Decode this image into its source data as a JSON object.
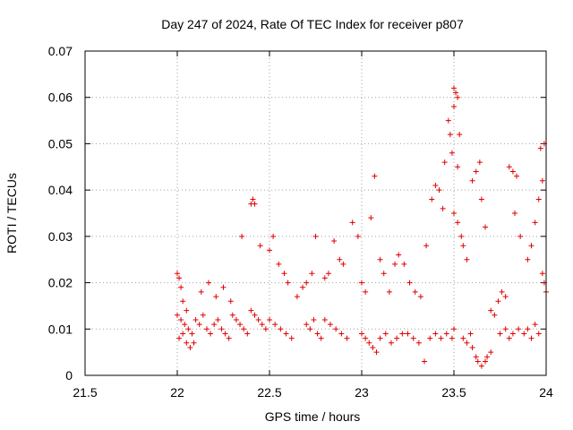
{
  "chart_data": {
    "type": "scatter",
    "title": "Day 247 of 2024, Rate Of TEC Index for receiver p807",
    "xlabel": "GPS time / hours",
    "ylabel": "ROTI / TECUs",
    "xlim": [
      21.5,
      24
    ],
    "ylim": [
      0,
      0.07
    ],
    "x_ticks": [
      21.5,
      22,
      22.5,
      23,
      23.5,
      24
    ],
    "x_tick_labels": [
      "21.5",
      "22",
      "22.5",
      "23",
      "23.5",
      "24"
    ],
    "y_ticks": [
      0,
      0.01,
      0.02,
      0.03,
      0.04,
      0.05,
      0.06,
      0.07
    ],
    "y_tick_labels": [
      "0",
      "0.01",
      "0.02",
      "0.03",
      "0.04",
      "0.05",
      "0.06",
      "0.07"
    ],
    "grid": true,
    "marker": "+",
    "color": "#e00000",
    "series": [
      {
        "name": "ROTI",
        "points": [
          [
            22.0,
            0.022
          ],
          [
            22.01,
            0.021
          ],
          [
            22.02,
            0.019
          ],
          [
            22.03,
            0.016
          ],
          [
            22.05,
            0.014
          ],
          [
            22.0,
            0.013
          ],
          [
            22.02,
            0.012
          ],
          [
            22.04,
            0.011
          ],
          [
            22.06,
            0.01
          ],
          [
            22.08,
            0.009
          ],
          [
            22.01,
            0.008
          ],
          [
            22.03,
            0.009
          ],
          [
            22.05,
            0.007
          ],
          [
            22.07,
            0.006
          ],
          [
            22.09,
            0.007
          ],
          [
            22.1,
            0.012
          ],
          [
            22.12,
            0.011
          ],
          [
            22.14,
            0.013
          ],
          [
            22.16,
            0.01
          ],
          [
            22.18,
            0.009
          ],
          [
            22.2,
            0.011
          ],
          [
            22.22,
            0.012
          ],
          [
            22.24,
            0.01
          ],
          [
            22.26,
            0.009
          ],
          [
            22.28,
            0.008
          ],
          [
            22.13,
            0.018
          ],
          [
            22.17,
            0.02
          ],
          [
            22.21,
            0.017
          ],
          [
            22.25,
            0.019
          ],
          [
            22.29,
            0.016
          ],
          [
            22.3,
            0.013
          ],
          [
            22.32,
            0.012
          ],
          [
            22.34,
            0.011
          ],
          [
            22.36,
            0.01
          ],
          [
            22.38,
            0.009
          ],
          [
            22.4,
            0.037
          ],
          [
            22.41,
            0.038
          ],
          [
            22.42,
            0.037
          ],
          [
            22.35,
            0.03
          ],
          [
            22.45,
            0.028
          ],
          [
            22.4,
            0.014
          ],
          [
            22.42,
            0.013
          ],
          [
            22.44,
            0.012
          ],
          [
            22.46,
            0.011
          ],
          [
            22.48,
            0.01
          ],
          [
            22.5,
            0.027
          ],
          [
            22.52,
            0.03
          ],
          [
            22.55,
            0.024
          ],
          [
            22.58,
            0.022
          ],
          [
            22.6,
            0.02
          ],
          [
            22.5,
            0.012
          ],
          [
            22.53,
            0.011
          ],
          [
            22.56,
            0.01
          ],
          [
            22.59,
            0.009
          ],
          [
            22.62,
            0.008
          ],
          [
            22.65,
            0.017
          ],
          [
            22.68,
            0.019
          ],
          [
            22.7,
            0.02
          ],
          [
            22.73,
            0.022
          ],
          [
            22.75,
            0.03
          ],
          [
            22.7,
            0.011
          ],
          [
            22.72,
            0.01
          ],
          [
            22.74,
            0.012
          ],
          [
            22.76,
            0.009
          ],
          [
            22.78,
            0.008
          ],
          [
            22.8,
            0.021
          ],
          [
            22.82,
            0.022
          ],
          [
            22.85,
            0.029
          ],
          [
            22.88,
            0.025
          ],
          [
            22.9,
            0.024
          ],
          [
            22.8,
            0.012
          ],
          [
            22.83,
            0.011
          ],
          [
            22.86,
            0.01
          ],
          [
            22.89,
            0.009
          ],
          [
            22.92,
            0.008
          ],
          [
            22.95,
            0.033
          ],
          [
            22.98,
            0.03
          ],
          [
            23.0,
            0.02
          ],
          [
            23.02,
            0.018
          ],
          [
            23.05,
            0.034
          ],
          [
            23.0,
            0.009
          ],
          [
            23.02,
            0.008
          ],
          [
            23.04,
            0.007
          ],
          [
            23.06,
            0.006
          ],
          [
            23.08,
            0.005
          ],
          [
            23.07,
            0.043
          ],
          [
            23.1,
            0.025
          ],
          [
            23.12,
            0.022
          ],
          [
            23.15,
            0.018
          ],
          [
            23.18,
            0.024
          ],
          [
            23.1,
            0.008
          ],
          [
            23.13,
            0.009
          ],
          [
            23.16,
            0.007
          ],
          [
            23.19,
            0.008
          ],
          [
            23.22,
            0.009
          ],
          [
            23.2,
            0.026
          ],
          [
            23.23,
            0.024
          ],
          [
            23.26,
            0.02
          ],
          [
            23.29,
            0.018
          ],
          [
            23.32,
            0.017
          ],
          [
            23.25,
            0.009
          ],
          [
            23.28,
            0.008
          ],
          [
            23.31,
            0.007
          ],
          [
            23.34,
            0.003
          ],
          [
            23.37,
            0.008
          ],
          [
            23.35,
            0.028
          ],
          [
            23.38,
            0.038
          ],
          [
            23.4,
            0.041
          ],
          [
            23.42,
            0.04
          ],
          [
            23.44,
            0.036
          ],
          [
            23.4,
            0.009
          ],
          [
            23.43,
            0.008
          ],
          [
            23.46,
            0.009
          ],
          [
            23.49,
            0.008
          ],
          [
            23.5,
            0.01
          ],
          [
            23.45,
            0.046
          ],
          [
            23.47,
            0.055
          ],
          [
            23.48,
            0.052
          ],
          [
            23.5,
            0.058
          ],
          [
            23.5,
            0.062
          ],
          [
            23.51,
            0.061
          ],
          [
            23.52,
            0.06
          ],
          [
            23.53,
            0.052
          ],
          [
            23.49,
            0.048
          ],
          [
            23.52,
            0.045
          ],
          [
            23.5,
            0.035
          ],
          [
            23.52,
            0.033
          ],
          [
            23.54,
            0.03
          ],
          [
            23.55,
            0.028
          ],
          [
            23.57,
            0.025
          ],
          [
            23.55,
            0.008
          ],
          [
            23.57,
            0.007
          ],
          [
            23.59,
            0.009
          ],
          [
            23.6,
            0.006
          ],
          [
            23.62,
            0.004
          ],
          [
            23.6,
            0.042
          ],
          [
            23.62,
            0.044
          ],
          [
            23.64,
            0.046
          ],
          [
            23.65,
            0.038
          ],
          [
            23.67,
            0.032
          ],
          [
            23.63,
            0.003
          ],
          [
            23.65,
            0.002
          ],
          [
            23.67,
            0.003
          ],
          [
            23.68,
            0.004
          ],
          [
            23.7,
            0.005
          ],
          [
            23.7,
            0.014
          ],
          [
            23.72,
            0.013
          ],
          [
            23.74,
            0.016
          ],
          [
            23.76,
            0.018
          ],
          [
            23.78,
            0.017
          ],
          [
            23.75,
            0.009
          ],
          [
            23.78,
            0.01
          ],
          [
            23.8,
            0.008
          ],
          [
            23.82,
            0.009
          ],
          [
            23.85,
            0.01
          ],
          [
            23.8,
            0.045
          ],
          [
            23.82,
            0.044
          ],
          [
            23.84,
            0.043
          ],
          [
            23.83,
            0.035
          ],
          [
            23.86,
            0.03
          ],
          [
            23.88,
            0.009
          ],
          [
            23.9,
            0.01
          ],
          [
            23.92,
            0.008
          ],
          [
            23.94,
            0.011
          ],
          [
            23.96,
            0.009
          ],
          [
            23.9,
            0.025
          ],
          [
            23.92,
            0.028
          ],
          [
            23.94,
            0.033
          ],
          [
            23.96,
            0.038
          ],
          [
            23.98,
            0.042
          ],
          [
            23.97,
            0.049
          ],
          [
            23.99,
            0.05
          ],
          [
            23.98,
            0.022
          ],
          [
            23.99,
            0.02
          ],
          [
            24.0,
            0.018
          ]
        ]
      }
    ]
  }
}
